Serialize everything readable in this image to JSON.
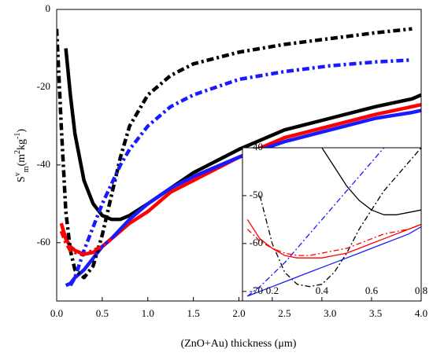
{
  "chart_data": [
    {
      "type": "line",
      "xlabel": "(ZnO+Au) thickness (μm)",
      "ylabel_parts": [
        {
          "text": "S",
          "style": "normal"
        },
        {
          "text": "v",
          "style": "sup"
        },
        {
          "text": "m",
          "style": "sub"
        },
        {
          "text": "(m",
          "style": "normal"
        },
        {
          "text": "2",
          "style": "sup"
        },
        {
          "text": "kg",
          "style": "normal"
        },
        {
          "text": "-1",
          "style": "sup"
        },
        {
          "text": ")",
          "style": "normal"
        }
      ],
      "x": [
        0,
        0.05,
        0.1,
        0.15,
        0.2,
        0.3,
        0.4,
        0.5,
        0.6,
        0.7,
        0.8,
        1.0,
        1.25,
        1.5,
        2.0,
        2.5,
        3.0,
        3.5,
        3.9,
        4.0
      ],
      "xlim": [
        0,
        4.0
      ],
      "xticks": [
        {
          "value": 0,
          "label": "0.0"
        },
        0.5,
        {
          "value": 1,
          "label": "1.0"
        },
        1.5,
        {
          "value": 2,
          "label": "2.0"
        },
        2.5,
        {
          "value": 3,
          "label": "3.0"
        },
        3.5,
        {
          "value": 4,
          "label": "4.0"
        }
      ],
      "ylim": [
        -75,
        0
      ],
      "yticks": [
        0,
        -20,
        -40,
        -60
      ],
      "series": [
        {
          "color": "#000000",
          "dash": "solid",
          "values": [
            null,
            null,
            -10,
            -22,
            -32,
            -44,
            -50,
            -53,
            -54,
            -54,
            -53,
            -50,
            -46,
            -42,
            -36,
            -31,
            -28,
            -25,
            -23,
            -22
          ]
        },
        {
          "color": "#ff0000",
          "dash": "solid",
          "values": [
            null,
            -55,
            -59,
            -61,
            -62,
            -63,
            -62.5,
            -61,
            -59,
            -57,
            -55,
            -52,
            -47,
            -44,
            -38,
            -33,
            -30,
            -27,
            -25,
            -24.5
          ]
        },
        {
          "color": "#1a1aff",
          "dash": "solid",
          "values": [
            null,
            null,
            -71,
            -70.5,
            -69,
            -67,
            -64,
            -61,
            -59,
            -56.5,
            -54,
            -50,
            -46,
            -43,
            -38,
            -34,
            -31,
            -28,
            -26.5,
            -26
          ]
        },
        {
          "color": "#000000",
          "dash": "dashdot",
          "values": [
            -5,
            -30,
            -52,
            -62,
            -67,
            -69,
            -66,
            -58,
            -48,
            -38,
            -30,
            -22,
            -17,
            -14,
            -11,
            -9,
            -7.5,
            -6,
            -5,
            null
          ]
        },
        {
          "color": "#1a1aff",
          "dash": "dashdot",
          "values": [
            null,
            null,
            null,
            -71,
            -69,
            -62,
            -56,
            -50,
            -45,
            -40,
            -36,
            -30,
            -25,
            -22,
            -18,
            -16,
            -14.5,
            -13.5,
            -13,
            null
          ]
        },
        {
          "color": "#ff0000",
          "dash": "dashdot",
          "values": [
            null,
            -57,
            -60,
            -62,
            -62.5,
            -63,
            -62,
            -61,
            -59,
            null,
            null,
            null,
            null,
            null,
            null,
            null,
            null,
            null,
            null,
            null
          ]
        }
      ]
    },
    {
      "type": "line",
      "x": [
        0.1,
        0.15,
        0.2,
        0.25,
        0.3,
        0.35,
        0.4,
        0.45,
        0.5,
        0.55,
        0.6,
        0.65,
        0.7,
        0.75,
        0.8
      ],
      "xlim": [
        0.08,
        0.8
      ],
      "xticks": [
        0.2,
        0.4,
        0.6,
        0.8
      ],
      "ylim": [
        -72,
        -40
      ],
      "yticks": [
        -40,
        -50,
        -60,
        -70
      ],
      "series": [
        {
          "color": "#000000",
          "dash": "solid",
          "values": [
            null,
            null,
            null,
            null,
            null,
            null,
            -40,
            -44,
            -48,
            -51,
            -53,
            -54,
            -54,
            -53.5,
            -53
          ]
        },
        {
          "color": "#000000",
          "dash": "dashdot",
          "values": [
            null,
            -50,
            -60,
            -66,
            -68.5,
            -69,
            -68.5,
            -66,
            -62,
            -57,
            -53,
            -49,
            -46,
            -43,
            -40
          ]
        },
        {
          "color": "#1a1aff",
          "dash": "dashdot",
          "values": [
            -71,
            -69,
            -66.5,
            -64,
            -61,
            -58,
            -55,
            -52,
            -49,
            -46,
            -43,
            -40,
            null,
            null,
            null
          ]
        },
        {
          "color": "#1a1aff",
          "dash": "solid",
          "values": [
            -71,
            -70,
            -69,
            -68,
            -67,
            -66,
            -65,
            -64,
            -63,
            -62,
            -61,
            -60,
            -59,
            -58,
            -56.5
          ]
        },
        {
          "color": "#ff0000",
          "dash": "solid",
          "values": [
            -55,
            -59,
            -61,
            -62.5,
            -63,
            -63,
            -63,
            -62.5,
            -62,
            -61,
            -60,
            -59,
            -58,
            -57,
            -56
          ]
        },
        {
          "color": "#ff0000",
          "dash": "dashdot",
          "values": [
            -57,
            -59.5,
            -61,
            -62,
            -62.5,
            -62.5,
            -62,
            -61.5,
            -61,
            -60,
            -59,
            -58,
            -57.5,
            -57,
            -56
          ]
        }
      ]
    }
  ]
}
